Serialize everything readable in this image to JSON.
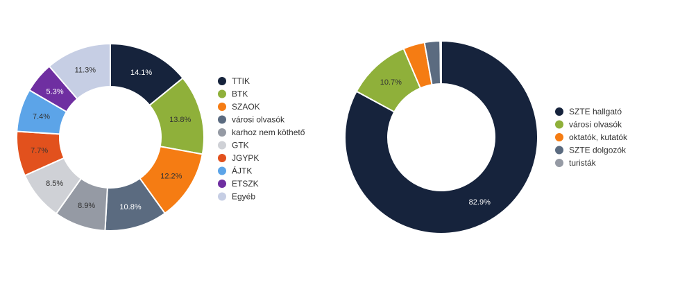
{
  "chart_data": [
    {
      "type": "pie",
      "donut": true,
      "legend_position": "right",
      "categories": [
        "TTIK",
        "BTK",
        "SZAOK",
        "városi olvasók",
        "karhoz nem köthető",
        "GTK",
        "JGYPK",
        "ÁJTK",
        "ETSZK",
        "Egyéb"
      ],
      "values": [
        14.1,
        13.8,
        12.2,
        10.8,
        8.9,
        8.5,
        7.7,
        7.4,
        5.3,
        11.3
      ],
      "labels": [
        "14.1%",
        "13.8%",
        "12.2%",
        "10.8%",
        "8.9%",
        "8.5%",
        "7.7%",
        "7.4%",
        "5.3%",
        "11.3%"
      ],
      "colors": [
        "#16233c",
        "#8fb03a",
        "#f57c13",
        "#5b6b80",
        "#959aa4",
        "#cfd1d6",
        "#e2511d",
        "#5ca4e8",
        "#6f2fa1",
        "#c6cee4"
      ],
      "label_colors": [
        "#ffffff",
        "#333333",
        "#333333",
        "#ffffff",
        "#333333",
        "#333333",
        "#333333",
        "#333333",
        "#ffffff",
        "#333333"
      ]
    },
    {
      "type": "pie",
      "donut": true,
      "legend_position": "right",
      "categories": [
        "SZTE hallgató",
        "városi olvasók",
        "oktatók, kutatók",
        "SZTE dolgozók",
        "turisták"
      ],
      "values": [
        82.9,
        10.7,
        3.6,
        2.6,
        0.2
      ],
      "labels": [
        "82.9%",
        "10.7%",
        "",
        "",
        ""
      ],
      "colors": [
        "#16233c",
        "#8fb03a",
        "#f57c13",
        "#5b6b80",
        "#959aa4"
      ],
      "label_colors": [
        "#ffffff",
        "#333333",
        "#333333",
        "#ffffff",
        "#333333"
      ]
    }
  ]
}
